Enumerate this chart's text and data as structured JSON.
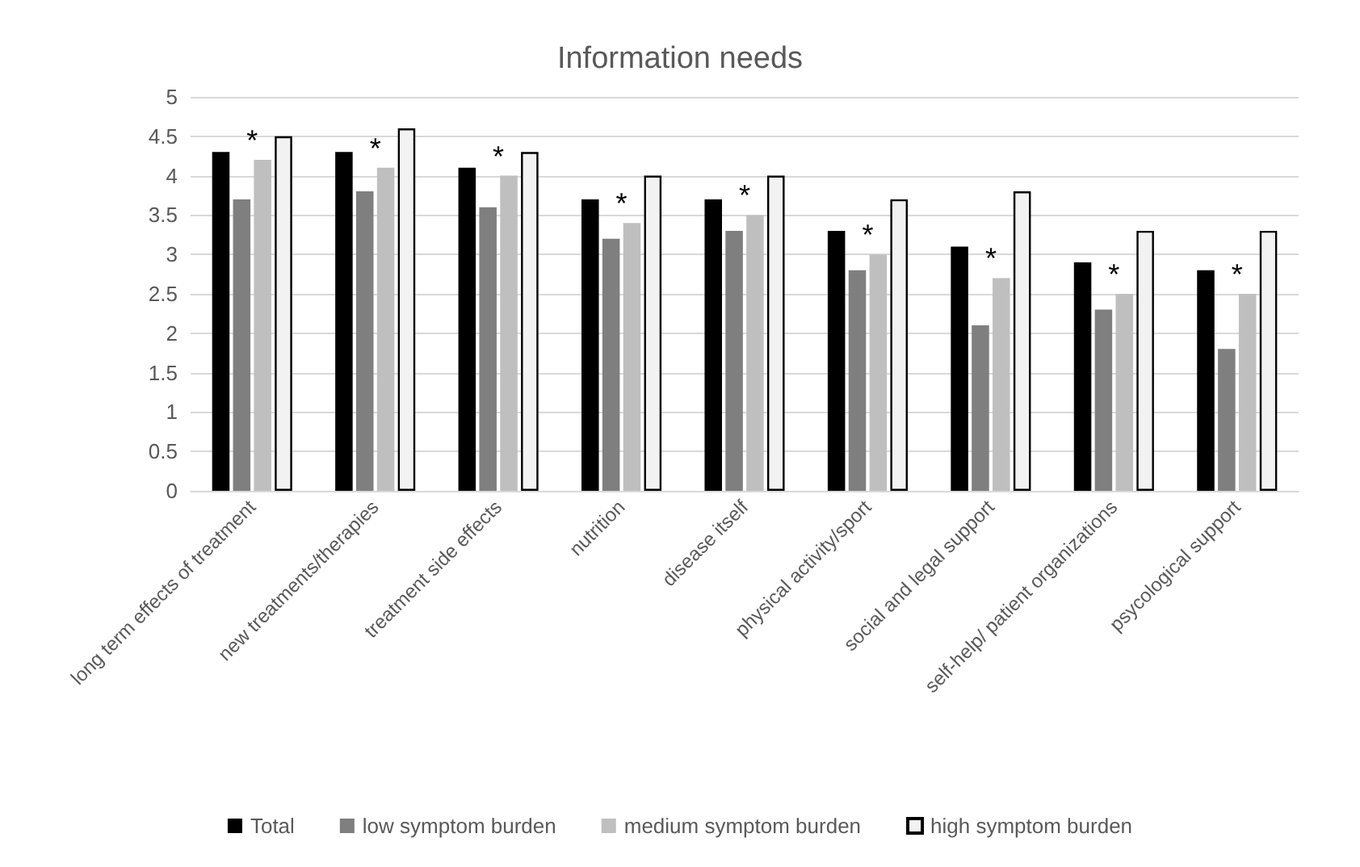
{
  "chart_data": {
    "type": "bar",
    "title": "Information needs",
    "categories": [
      "long term effects of treatment",
      "new treatments/therapies",
      "treatment side effects",
      "nutrition",
      "disease itself",
      "physical activity/sport",
      "social and legal support",
      "self-help/ patient organizations",
      "psycological support"
    ],
    "series": [
      {
        "name": "Total",
        "color": "#000000",
        "values": [
          4.3,
          4.3,
          4.1,
          3.7,
          3.7,
          3.3,
          3.1,
          2.9,
          2.8
        ]
      },
      {
        "name": "low symptom burden",
        "color": "#7f7f7f",
        "values": [
          3.7,
          3.8,
          3.6,
          3.2,
          3.3,
          2.8,
          2.1,
          2.3,
          1.8
        ]
      },
      {
        "name": "medium symptom burden",
        "color": "#bfbfbf",
        "values": [
          4.2,
          4.1,
          4.0,
          3.4,
          3.5,
          3.0,
          2.7,
          2.5,
          2.5
        ]
      },
      {
        "name": "high symptom burden",
        "color": "#f2f2f2",
        "values": [
          4.5,
          4.6,
          4.3,
          4.0,
          4.0,
          3.7,
          3.8,
          3.3,
          3.3
        ]
      }
    ],
    "ylim": [
      0,
      5
    ],
    "yticks": [
      0,
      0.5,
      1,
      1.5,
      2,
      2.5,
      3,
      3.5,
      4,
      4.5,
      5
    ],
    "grid": "y",
    "legend": "bottom",
    "annotations": [
      "*",
      "*",
      "*",
      "*",
      "*",
      "*",
      "*",
      "*",
      "*"
    ]
  }
}
